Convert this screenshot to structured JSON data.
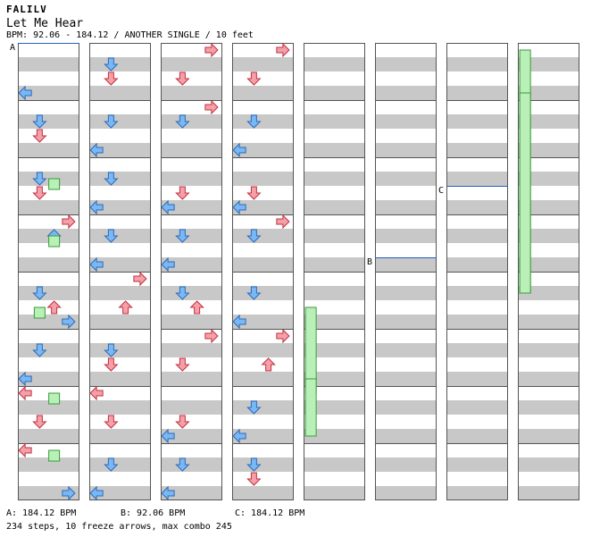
{
  "header": {
    "artist": "FALILV",
    "title": "Let Me Hear",
    "info": "BPM: 92.06 - 184.12 / ANOTHER SINGLE / 10 feet"
  },
  "markers": [
    {
      "label": "A",
      "measure": 0,
      "beat": 0
    },
    {
      "label": "B",
      "measure": 43,
      "beat": 3
    },
    {
      "label": "C",
      "measure": 50,
      "beat": 2
    }
  ],
  "footer": {
    "bpm_a": "A: 184.12 BPM",
    "bpm_b": "B: 92.06 BPM",
    "bpm_c": "C: 184.12 BPM",
    "summary": "234 steps, 10 freeze arrows, max combo 245"
  },
  "colors": {
    "quarter": "#f5a0a8",
    "eighth": "#7ab8f5",
    "sixteenth": "#f0a0f0",
    "freeze": "#b8f0b8",
    "stripe": "#c8c8c8"
  },
  "chart_data": {
    "type": "table",
    "layout": {
      "columns": 8,
      "measures_per_column": 8,
      "lanes": [
        "left",
        "down",
        "up",
        "right"
      ]
    },
    "notes": [
      [
        0,
        0,
        3,
        "left"
      ],
      [
        1,
        0,
        1,
        "down"
      ],
      [
        1,
        0,
        2,
        "down"
      ],
      [
        2,
        0,
        1,
        "down"
      ],
      [
        2,
        0,
        2,
        "down"
      ],
      [
        3,
        0,
        0,
        "right"
      ],
      [
        3,
        0,
        1,
        "up"
      ],
      [
        4,
        0,
        2,
        "up"
      ],
      [
        4,
        0,
        1,
        "down"
      ],
      [
        4,
        0,
        3,
        "right"
      ],
      [
        5,
        0,
        3,
        "left"
      ],
      [
        5,
        0,
        1,
        "down"
      ],
      [
        6,
        0,
        0,
        "left"
      ],
      [
        6,
        0,
        2,
        "down"
      ],
      [
        7,
        0,
        0,
        "left"
      ],
      [
        7,
        0,
        3,
        "right"
      ],
      [
        8,
        0,
        2,
        "down"
      ],
      [
        8,
        0,
        1,
        "down"
      ],
      [
        9,
        0,
        3,
        "left"
      ],
      [
        9,
        0,
        1,
        "down"
      ],
      [
        10,
        0,
        1,
        "down"
      ],
      [
        10,
        0,
        3,
        "left"
      ],
      [
        11,
        0,
        1,
        "down"
      ],
      [
        11,
        0,
        3,
        "left"
      ],
      [
        12,
        0,
        0,
        "right"
      ],
      [
        12,
        0,
        2,
        "up"
      ],
      [
        13,
        0,
        2,
        "down"
      ],
      [
        13,
        0,
        1,
        "down"
      ],
      [
        14,
        0,
        0,
        "left"
      ],
      [
        14,
        0,
        2,
        "down"
      ],
      [
        15,
        0,
        1,
        "down"
      ],
      [
        15,
        0,
        3,
        "left"
      ],
      [
        16,
        0,
        0,
        "right"
      ],
      [
        16,
        0,
        2,
        "down"
      ],
      [
        17,
        0,
        1,
        "down"
      ],
      [
        17,
        0,
        0,
        "right"
      ],
      [
        18,
        0,
        3,
        "left"
      ],
      [
        18,
        0,
        2,
        "down"
      ],
      [
        19,
        0,
        1,
        "down"
      ],
      [
        19,
        0,
        3,
        "left"
      ],
      [
        20,
        0,
        2,
        "up"
      ],
      [
        20,
        0,
        1,
        "down"
      ],
      [
        21,
        0,
        0,
        "right"
      ],
      [
        21,
        0,
        2,
        "down"
      ],
      [
        22,
        0,
        2,
        "down"
      ],
      [
        22,
        0,
        3,
        "left"
      ],
      [
        23,
        0,
        1,
        "down"
      ],
      [
        23,
        0,
        3,
        "left"
      ],
      [
        24,
        0,
        2,
        "down"
      ],
      [
        24,
        0,
        0,
        "right"
      ],
      [
        25,
        0,
        3,
        "left"
      ],
      [
        25,
        0,
        1,
        "down"
      ],
      [
        26,
        0,
        2,
        "down"
      ],
      [
        26,
        0,
        3,
        "left"
      ],
      [
        27,
        0,
        0,
        "right"
      ],
      [
        27,
        0,
        1,
        "down"
      ],
      [
        28,
        0,
        1,
        "down"
      ],
      [
        28,
        0,
        3,
        "left"
      ],
      [
        29,
        0,
        2,
        "up"
      ],
      [
        29,
        0,
        0,
        "right"
      ],
      [
        30,
        0,
        3,
        "left"
      ],
      [
        30,
        0,
        1,
        "down"
      ],
      [
        31,
        0,
        1,
        "down"
      ],
      [
        31,
        0,
        2,
        "down"
      ]
    ],
    "freezes": 10,
    "steps": 234,
    "max_combo": 245
  }
}
